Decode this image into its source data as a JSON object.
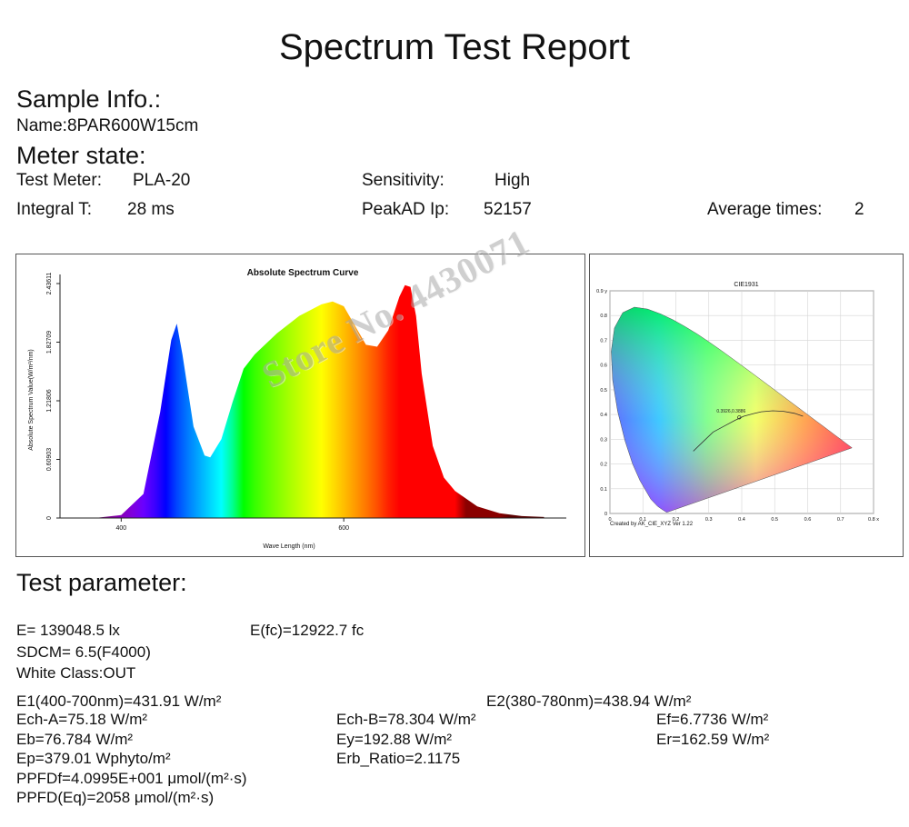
{
  "report": {
    "title": "Spectrum Test Report"
  },
  "sample": {
    "heading": "Sample Info.:",
    "name": "Name:8PAR600W15cm"
  },
  "meter": {
    "heading": "Meter state:",
    "test_meter_label": "Test Meter:",
    "test_meter_value": "PLA-20",
    "sensitivity_label": "Sensitivity:",
    "sensitivity_value": "High",
    "integral_label": "Integral T:",
    "integral_value": "28 ms",
    "peakad_label": "PeakAD Ip:",
    "peakad_value": "52157",
    "average_label": "Average times:",
    "average_value": "2"
  },
  "watermark": "Store No. 4430071",
  "chart_data": [
    {
      "type": "area",
      "title": "Absolute Spectrum Curve",
      "xlabel": "Wave Length (nm)",
      "ylabel": "Absolute Spectrum Value(W/m²/nm)",
      "xlim": [
        345,
        800
      ],
      "ylim": [
        0,
        2.43611
      ],
      "xticks": [
        "400",
        "600"
      ],
      "yticks": [
        "0",
        "0.60903",
        "1.21806",
        "1.82709",
        "2.43611"
      ],
      "grid": false,
      "fill": "visible-spectrum gradient",
      "x": [
        360,
        380,
        400,
        420,
        435,
        445,
        450,
        455,
        465,
        475,
        480,
        490,
        500,
        510,
        520,
        540,
        560,
        580,
        590,
        600,
        610,
        620,
        630,
        640,
        650,
        655,
        660,
        665,
        670,
        680,
        690,
        700,
        720,
        740,
        760,
        780
      ],
      "series": [
        {
          "values": [
            0,
            0.005,
            0.03,
            0.25,
            1.1,
            1.85,
            2.02,
            1.7,
            0.95,
            0.65,
            0.63,
            0.82,
            1.2,
            1.55,
            1.7,
            1.92,
            2.1,
            2.22,
            2.25,
            2.2,
            2.0,
            1.8,
            1.78,
            1.95,
            2.3,
            2.42,
            2.4,
            2.1,
            1.5,
            0.75,
            0.42,
            0.28,
            0.12,
            0.05,
            0.02,
            0.01
          ]
        }
      ]
    },
    {
      "type": "scatter",
      "title": "CIE1931",
      "xlim": [
        0,
        0.8
      ],
      "ylim": [
        0,
        0.9
      ],
      "xticks": [
        "0",
        "0.1",
        "0.2",
        "0.3",
        "0.4",
        "0.5",
        "0.6",
        "0.7",
        "0.8 x"
      ],
      "yticks": [
        "0",
        "0.1",
        "0.2",
        "0.3",
        "0.4",
        "0.5",
        "0.6",
        "0.7",
        "0.8",
        "0.9 y"
      ],
      "grid": true,
      "locus": [
        [
          0.1741,
          0.005
        ],
        [
          0.1726,
          0.0048
        ],
        [
          0.1689,
          0.0069
        ],
        [
          0.1644,
          0.0109
        ],
        [
          0.1566,
          0.0177
        ],
        [
          0.144,
          0.0297
        ],
        [
          0.1241,
          0.0578
        ],
        [
          0.0913,
          0.1327
        ],
        [
          0.0687,
          0.2007
        ],
        [
          0.0454,
          0.295
        ],
        [
          0.0235,
          0.4127
        ],
        [
          0.0082,
          0.5384
        ],
        [
          0.0039,
          0.6548
        ],
        [
          0.0139,
          0.7502
        ],
        [
          0.0389,
          0.812
        ],
        [
          0.0743,
          0.8338
        ],
        [
          0.1142,
          0.8262
        ],
        [
          0.1547,
          0.8059
        ],
        [
          0.1929,
          0.7816
        ],
        [
          0.2296,
          0.7543
        ],
        [
          0.2658,
          0.7243
        ],
        [
          0.3016,
          0.6923
        ],
        [
          0.3373,
          0.6589
        ],
        [
          0.3731,
          0.6245
        ],
        [
          0.4087,
          0.5896
        ],
        [
          0.4441,
          0.5547
        ],
        [
          0.4788,
          0.5202
        ],
        [
          0.5125,
          0.4866
        ],
        [
          0.5448,
          0.4544
        ],
        [
          0.5752,
          0.4242
        ],
        [
          0.6029,
          0.3965
        ],
        [
          0.627,
          0.3725
        ],
        [
          0.6482,
          0.3514
        ],
        [
          0.6658,
          0.334
        ],
        [
          0.6801,
          0.3197
        ],
        [
          0.6915,
          0.3083
        ],
        [
          0.7006,
          0.2993
        ],
        [
          0.714,
          0.2859
        ],
        [
          0.7347,
          0.2653
        ]
      ],
      "planckian": [
        [
          0.253,
          0.252
        ],
        [
          0.281,
          0.288
        ],
        [
          0.313,
          0.329
        ],
        [
          0.345,
          0.352
        ],
        [
          0.38,
          0.377
        ],
        [
          0.406,
          0.393
        ],
        [
          0.437,
          0.404
        ],
        [
          0.459,
          0.411
        ],
        [
          0.494,
          0.415
        ],
        [
          0.527,
          0.413
        ],
        [
          0.56,
          0.405
        ],
        [
          0.586,
          0.393
        ]
      ],
      "point": {
        "x": 0.3926,
        "y": 0.3886,
        "label": "0.3926,0.3886"
      },
      "footer": "Created by AK_CIE_XYZ Ver 1.22"
    }
  ],
  "params": {
    "heading": "Test parameter:",
    "e": "E=  139048.5 lx",
    "efc": "E(fc)=12922.7 fc",
    "sdcm": "SDCM= 6.5(F4000)",
    "white_class": "White Class:OUT",
    "e1": "E1(400-700nm)=431.91 W/m²",
    "e2": "E2(380-780nm)=438.94 W/m²",
    "ech_a": "Ech-A=75.18 W/m²",
    "ech_b": "Ech-B=78.304 W/m²",
    "ef": "Ef=6.7736 W/m²",
    "eb": "Eb=76.784 W/m²",
    "ey": "Ey=192.88 W/m²",
    "er": "Er=162.59 W/m²",
    "ep": "Ep=379.01 Wphyto/m²",
    "erb_ratio": "Erb_Ratio=2.1175",
    "ppfdf": "PPFDf=4.0995E+001 μmol/(m²·s)",
    "ppfd_eq": "PPFD(Eq)=2058 μmol/(m²·s)"
  }
}
